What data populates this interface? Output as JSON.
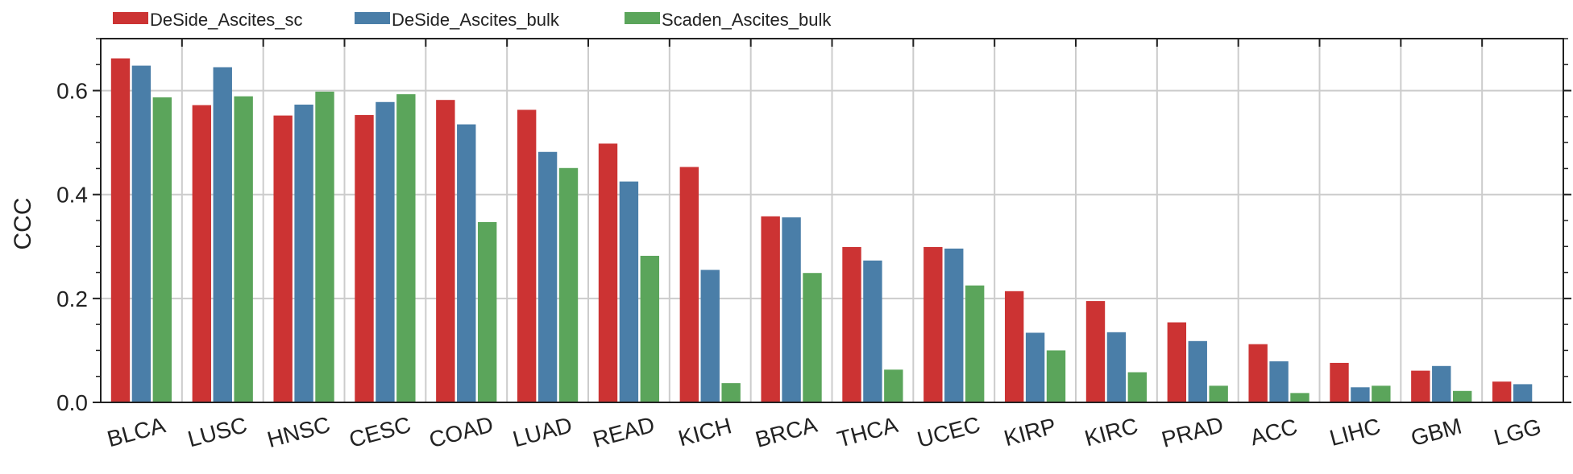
{
  "chart_data": {
    "type": "bar",
    "ylabel": "CCC",
    "ylim": [
      0,
      0.7
    ],
    "yticks": [
      "0.0",
      "0.2",
      "0.4",
      "0.6"
    ],
    "grid": true,
    "legend_position": "top-left",
    "categories": [
      "BLCA",
      "LUSC",
      "HNSC",
      "CESC",
      "COAD",
      "LUAD",
      "READ",
      "KICH",
      "BRCA",
      "THCA",
      "UCEC",
      "KIRP",
      "KIRC",
      "PRAD",
      "ACC",
      "LIHC",
      "GBM",
      "LGG"
    ],
    "series": [
      {
        "name": "DeSide_Ascites_sc",
        "color": "#cc3333",
        "values": [
          0.662,
          0.572,
          0.552,
          0.553,
          0.582,
          0.563,
          0.498,
          0.453,
          0.358,
          0.299,
          0.299,
          0.214,
          0.195,
          0.154,
          0.112,
          0.076,
          0.061,
          0.04
        ]
      },
      {
        "name": "DeSide_Ascites_bulk",
        "color": "#4a7ea8",
        "values": [
          0.648,
          0.645,
          0.573,
          0.578,
          0.535,
          0.482,
          0.425,
          0.255,
          0.356,
          0.273,
          0.296,
          0.134,
          0.135,
          0.118,
          0.079,
          0.029,
          0.07,
          0.035
        ]
      },
      {
        "name": "Scaden_Ascites_bulk",
        "color": "#5ba55b",
        "values": [
          0.587,
          0.589,
          0.598,
          0.593,
          0.347,
          0.451,
          0.282,
          0.037,
          0.249,
          0.063,
          0.225,
          0.1,
          0.058,
          0.032,
          0.018,
          0.032,
          0.022,
          0.0
        ]
      }
    ]
  }
}
